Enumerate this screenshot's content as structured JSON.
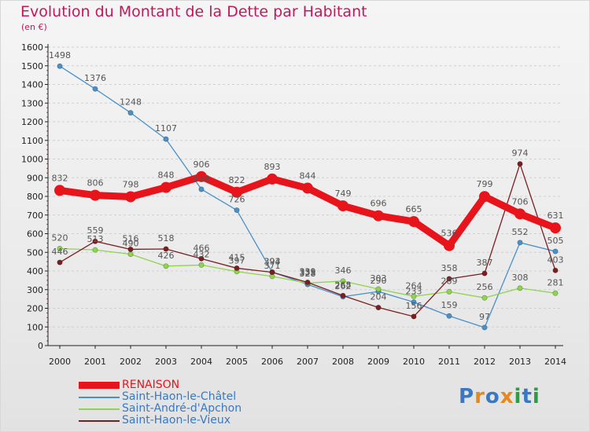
{
  "header": {
    "title": "Evolution du Montant de la Dette par Habitant",
    "subtitle": "(en €)"
  },
  "logo": {
    "text": "Proxiti",
    "letter_colors": [
      "#3a78c3",
      "#e8871e",
      "#3a78c3",
      "#e8871e",
      "#2d9c46",
      "#3a78c3",
      "#2d9c46"
    ]
  },
  "colors": {
    "title": "#c2185b",
    "axis": "#222222",
    "grid": "#d0d0d0",
    "label": "#555555"
  },
  "chart_data": {
    "type": "line",
    "title": "Evolution du Montant de la Dette par Habitant",
    "subtitle": "(en €)",
    "xlabel": "",
    "ylabel": "",
    "x": [
      "2000",
      "2001",
      "2002",
      "2003",
      "2004",
      "2005",
      "2006",
      "2007",
      "2008",
      "2009",
      "2010",
      "2011",
      "2012",
      "2013",
      "2014"
    ],
    "ylim": [
      0,
      1600
    ],
    "yticks": [
      "0",
      "100",
      "200",
      "300",
      "400",
      "500",
      "600",
      "700",
      "800",
      "900",
      "1000",
      "1100",
      "1200",
      "1300",
      "1400",
      "1500",
      "1600"
    ],
    "grid": "horizontal",
    "legend_position": "bottom-left",
    "series": [
      {
        "name": "RENAISON",
        "color": "#e8141b",
        "bold": true,
        "values": [
          832,
          806,
          798,
          848,
          906,
          822,
          893,
          844,
          749,
          696,
          665,
          536,
          799,
          706,
          631
        ],
        "labels": [
          "832",
          "806",
          "798",
          "848",
          "906",
          "822",
          "893",
          "844",
          "749",
          "696",
          "665",
          "536",
          "799",
          "706",
          "631"
        ]
      },
      {
        "name": "Saint-Haon-le-Châtel",
        "color": "#4a90c8",
        "bold": false,
        "values": [
          1498,
          1376,
          1248,
          1107,
          838,
          726,
          394,
          328,
          262,
          290,
          233,
          159,
          97,
          552,
          505
        ],
        "labels": [
          "1498",
          "1376",
          "1248",
          "1107",
          "838",
          "726",
          "394",
          "328",
          "262",
          "290",
          "233",
          "159",
          "97",
          "552",
          "505"
        ]
      },
      {
        "name": "Saint-André-d'Apchon",
        "color": "#8ed44e",
        "bold": false,
        "values": [
          520,
          513,
          490,
          426,
          432,
          397,
          371,
          335,
          346,
          303,
          264,
          289,
          256,
          308,
          281
        ],
        "labels": [
          "520",
          "513",
          "490",
          "426",
          "432",
          "397",
          "371",
          "335",
          "346",
          "303",
          "264",
          "289",
          "256",
          "308",
          "281"
        ]
      },
      {
        "name": "Saint-Haon-le-Vieux",
        "color": "#7b1e22",
        "bold": false,
        "values": [
          446,
          559,
          516,
          518,
          466,
          415,
          393,
          339,
          268,
          204,
          156,
          358,
          387,
          974,
          403
        ],
        "labels": [
          "446",
          "559",
          "516",
          "518",
          "466",
          "415",
          "393",
          "339",
          "268",
          "204",
          "156",
          "358",
          "387",
          "974",
          "403"
        ]
      }
    ]
  }
}
